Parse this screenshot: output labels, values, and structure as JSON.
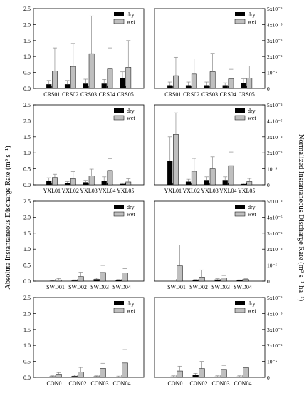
{
  "left_axis_label": "Absolute Instantaneous Discharge Rate (m³ s⁻¹)",
  "right_axis_label": "Normalized Instantaneous Discharge Rate (m³ s⁻¹ ha⁻¹)",
  "legend": {
    "dry": "dry",
    "wet": "wet"
  },
  "colors": {
    "dry": "#000000",
    "wet": "#bfbfbf",
    "error": "#8c8c8c"
  },
  "left_ticks": [
    "0.0",
    "0.5",
    "1.0",
    "1.5",
    "2.0",
    "2.5"
  ],
  "right_ticks": [
    "0",
    "10⁻⁵",
    "2x10⁻⁵",
    "3x10⁻⁵",
    "4x10⁻⁵",
    "5x10⁻⁵"
  ],
  "chart_data": [
    {
      "type": "bar",
      "axis": "left",
      "ylim": [
        0,
        2.5
      ],
      "categories": [
        "CRS01",
        "CRS02",
        "CRS03",
        "CRS04",
        "CRS05"
      ],
      "series": [
        {
          "name": "dry",
          "values": [
            0.13,
            0.13,
            0.15,
            0.15,
            0.32
          ],
          "errors": [
            0.12,
            0.12,
            0.14,
            0.13,
            0.2
          ]
        },
        {
          "name": "wet",
          "values": [
            0.55,
            0.69,
            1.09,
            0.61,
            0.66
          ],
          "errors": [
            0.72,
            0.72,
            1.18,
            0.66,
            0.84
          ]
        }
      ]
    },
    {
      "type": "bar",
      "axis": "right",
      "ylim": [
        0,
        5e-05
      ],
      "categories": [
        "CRS01",
        "CRS02",
        "CRS03",
        "CRS04",
        "CRS05"
      ],
      "series": [
        {
          "name": "dry",
          "values": [
            2e-06,
            2e-06,
            2e-06,
            2e-06,
            3.5e-06
          ],
          "errors": [
            2e-06,
            2e-06,
            2e-06,
            1.5e-06,
            2.5e-06
          ]
        },
        {
          "name": "wet",
          "values": [
            8e-06,
            9e-06,
            1.05e-05,
            6e-06,
            6.5e-06
          ],
          "errors": [
            1.15e-05,
            9.5e-06,
            1.15e-05,
            6e-06,
            7.5e-06
          ]
        }
      ]
    },
    {
      "type": "bar",
      "axis": "left",
      "ylim": [
        0,
        2.5
      ],
      "categories": [
        "YXL01",
        "YXL02",
        "YXL03",
        "YXL04",
        "YXL05"
      ],
      "series": [
        {
          "name": "dry",
          "values": [
            0.12,
            0.05,
            0.08,
            0.13,
            0.03
          ],
          "errors": [
            0.1,
            0.05,
            0.06,
            0.12,
            0.03
          ]
        },
        {
          "name": "wet",
          "values": [
            0.23,
            0.19,
            0.28,
            0.45,
            0.09
          ],
          "errors": [
            0.1,
            0.22,
            0.21,
            0.37,
            0.1
          ]
        }
      ]
    },
    {
      "type": "bar",
      "axis": "right",
      "ylim": [
        0,
        5e-05
      ],
      "categories": [
        "YXL01",
        "YXL02",
        "YXL03",
        "YXL04",
        "YXL05"
      ],
      "series": [
        {
          "name": "dry",
          "values": [
            1.5e-05,
            2e-06,
            3e-06,
            3e-06,
            5e-07
          ],
          "errors": [
            1.5e-05,
            1.5e-06,
            2e-06,
            2e-06,
            5e-07
          ]
        },
        {
          "name": "wet",
          "values": [
            3.15e-05,
            8.5e-06,
            1e-05,
            1.2e-05,
            2e-06
          ],
          "errors": [
            1.35e-05,
            8e-06,
            7.5e-06,
            8.5e-06,
            2e-06
          ]
        }
      ]
    },
    {
      "type": "bar",
      "axis": "left",
      "ylim": [
        0,
        2.5
      ],
      "categories": [
        "SWD01",
        "SWD02",
        "SWD03",
        "SWD04"
      ],
      "series": [
        {
          "name": "dry",
          "values": [
            0.01,
            0.02,
            0.06,
            0.03
          ],
          "errors": [
            0.01,
            0.02,
            0.03,
            0.02
          ]
        },
        {
          "name": "wet",
          "values": [
            0.04,
            0.14,
            0.27,
            0.26
          ],
          "errors": [
            0.04,
            0.14,
            0.22,
            0.13
          ]
        }
      ]
    },
    {
      "type": "bar",
      "axis": "right",
      "ylim": [
        0,
        5e-05
      ],
      "categories": [
        "SWD01",
        "SWD02",
        "SWD03",
        "SWD04"
      ],
      "series": [
        {
          "name": "dry",
          "values": [
            0,
            5e-07,
            1e-06,
            5e-07
          ],
          "errors": [
            0,
            5e-07,
            5e-07,
            3e-07
          ]
        },
        {
          "name": "wet",
          "values": [
            9.5e-06,
            2.5e-06,
            2e-06,
            1e-06
          ],
          "errors": [
            1.3e-05,
            4.5e-06,
            1.5e-06,
            5e-07
          ]
        }
      ]
    },
    {
      "type": "bar",
      "axis": "left",
      "ylim": [
        0,
        2.5
      ],
      "categories": [
        "CON01",
        "CON02",
        "CON03",
        "CON04"
      ],
      "series": [
        {
          "name": "dry",
          "values": [
            0.03,
            0.04,
            0.03,
            0.02
          ],
          "errors": [
            0.02,
            0.03,
            0.02,
            0.02
          ]
        },
        {
          "name": "wet",
          "values": [
            0.1,
            0.17,
            0.28,
            0.45
          ],
          "errors": [
            0.05,
            0.14,
            0.16,
            0.42
          ]
        }
      ]
    },
    {
      "type": "bar",
      "axis": "right",
      "ylim": [
        0,
        5e-05
      ],
      "categories": [
        "CON01",
        "CON02",
        "CON03",
        "CON04"
      ],
      "series": [
        {
          "name": "dry",
          "values": [
            5e-07,
            1.5e-06,
            5e-07,
            5e-07
          ],
          "errors": [
            5e-07,
            1e-06,
            5e-07,
            5e-07
          ]
        },
        {
          "name": "wet",
          "values": [
            4e-06,
            5.5e-06,
            5e-06,
            6e-06
          ],
          "errors": [
            3e-06,
            4.5e-06,
            2.5e-06,
            5e-06
          ]
        }
      ]
    }
  ]
}
